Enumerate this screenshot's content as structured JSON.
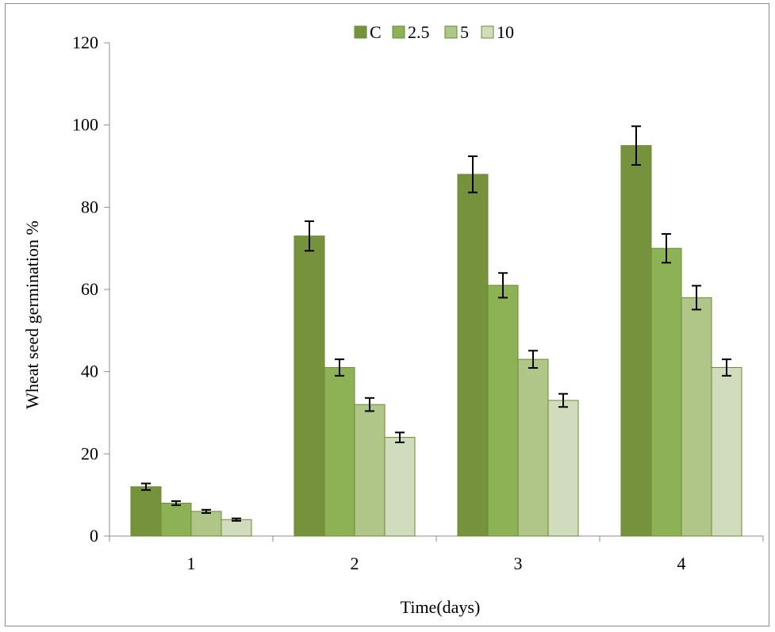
{
  "chart_data": {
    "type": "bar",
    "xlabel": "Time(days)",
    "ylabel": "Wheat seed germination %",
    "categories": [
      "1",
      "2",
      "3",
      "4"
    ],
    "ylim": [
      0,
      120
    ],
    "yticks": [
      0,
      20,
      40,
      60,
      80,
      100,
      120
    ],
    "grid": false,
    "legend_position": "top-center",
    "series": [
      {
        "name": "C",
        "color": "#76923c",
        "values": [
          12,
          73,
          88,
          95
        ],
        "errors": [
          0.8,
          3.6,
          4.4,
          4.7
        ]
      },
      {
        "name": "2.5",
        "color": "#8db255",
        "values": [
          8,
          41,
          61,
          70
        ],
        "errors": [
          0.5,
          2.0,
          3.0,
          3.5
        ]
      },
      {
        "name": "5",
        "color": "#afc688",
        "values": [
          6,
          32,
          43,
          58
        ],
        "errors": [
          0.4,
          1.6,
          2.1,
          2.9
        ]
      },
      {
        "name": "10",
        "color": "#d1dcbd",
        "values": [
          4,
          24,
          33,
          41
        ],
        "errors": [
          0.3,
          1.2,
          1.6,
          2.0
        ]
      }
    ],
    "bar_stroke": "#6a8a35"
  }
}
